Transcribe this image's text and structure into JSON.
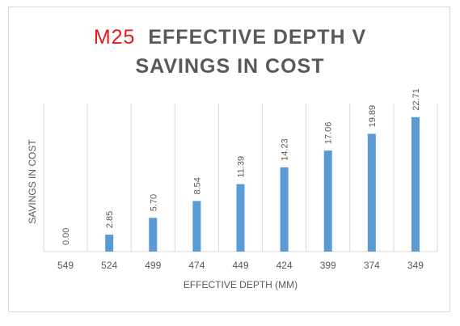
{
  "chart_data": {
    "type": "bar",
    "title_prefix": "M25",
    "title_line1": "EFFECTIVE DEPTH V",
    "title_line2": "SAVINGS IN COST",
    "xlabel": "EFFECTIVE DEPTH (MM)",
    "ylabel": "SAVINGS IN COST",
    "categories": [
      "549",
      "524",
      "499",
      "474",
      "449",
      "424",
      "399",
      "374",
      "349"
    ],
    "values": [
      0.0,
      2.85,
      5.7,
      8.54,
      11.39,
      14.23,
      17.06,
      19.89,
      22.71
    ],
    "value_labels": [
      "0.00",
      "2.85",
      "5.70",
      "8.54",
      "11.39",
      "14.23",
      "17.06",
      "19.89",
      "22.71"
    ],
    "ylim": [
      0,
      25
    ],
    "grid": "vertical",
    "legend": "none",
    "colors": {
      "bar": "#5b9bd5",
      "title": "#595959",
      "accent": "#e41a1c",
      "grid": "#d9d9d9",
      "text": "#595959"
    }
  }
}
